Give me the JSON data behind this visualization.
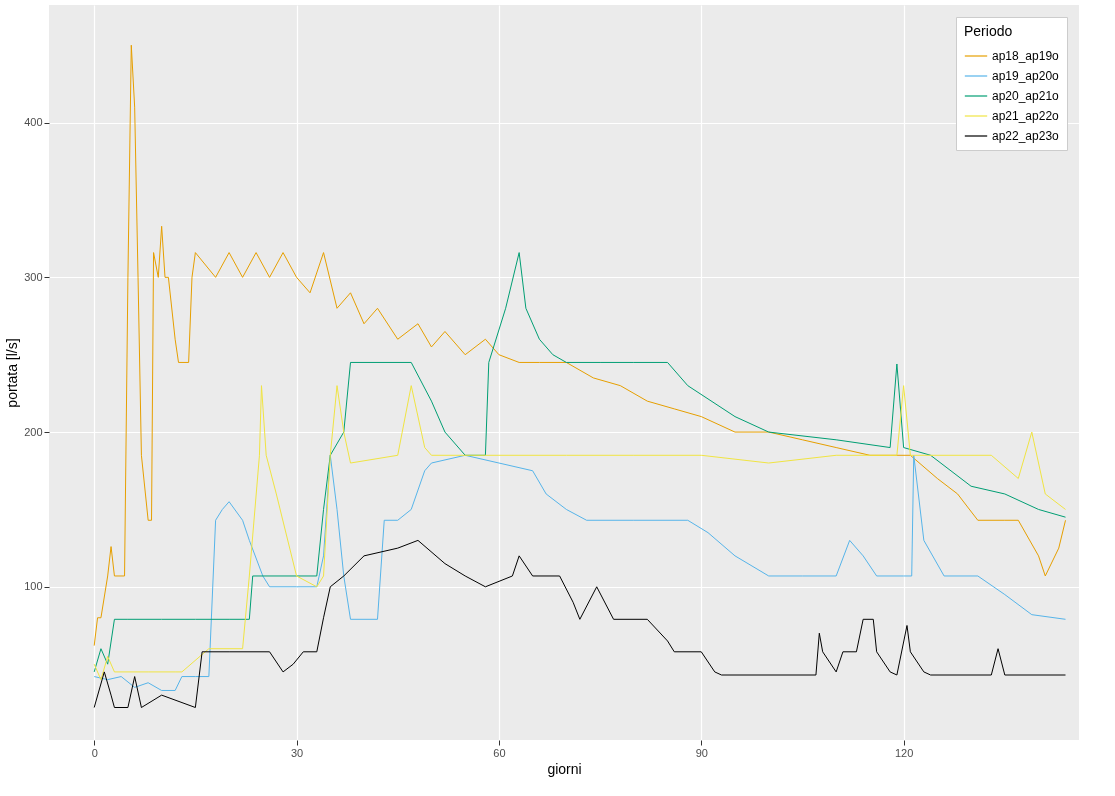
{
  "chart_data": {
    "type": "line",
    "xlabel": "giorni",
    "ylabel": "portata [l/s]",
    "legend_title": "Periodo",
    "legend": "top right",
    "grid": true,
    "line_style": "solid",
    "marker": "none",
    "xlim": [
      -6.7,
      146
    ],
    "ylim": [
      1,
      476
    ],
    "xticks": [
      0,
      30,
      60,
      90,
      120
    ],
    "yticks": [
      100,
      200,
      300,
      400
    ],
    "series": [
      {
        "name": "ap18_ap19o",
        "color": "#e69f00",
        "x": [
          0,
          0.5,
          1,
          2,
          2.5,
          3,
          4.5,
          5,
          5.5,
          6,
          6.5,
          7,
          8,
          8.5,
          8.8,
          9.5,
          10,
          10.5,
          11,
          12,
          12.5,
          14,
          14.5,
          15,
          18,
          20,
          22,
          24,
          26,
          28,
          30,
          32,
          34,
          36,
          38,
          40,
          42,
          45,
          48,
          50,
          52,
          55,
          58,
          60,
          63,
          66,
          70,
          74,
          78,
          82,
          86,
          90,
          95,
          100,
          105,
          110,
          115,
          118,
          121,
          125,
          128,
          131,
          135,
          137,
          140,
          141,
          143,
          144
        ],
        "values": [
          62,
          80,
          80,
          107,
          126,
          107,
          107,
          300,
          450,
          410,
          300,
          185,
          143,
          143,
          316,
          300,
          333,
          300,
          300,
          260,
          245,
          245,
          300,
          316,
          300,
          316,
          300,
          316,
          300,
          316,
          300,
          290,
          316,
          280,
          290,
          270,
          280,
          260,
          270,
          255,
          265,
          250,
          260,
          250,
          245,
          245,
          245,
          235,
          230,
          220,
          215,
          210,
          200,
          200,
          195,
          190,
          185,
          185,
          185,
          170,
          160,
          143,
          143,
          143,
          120,
          107,
          125,
          143
        ]
      },
      {
        "name": "ap19_ap20o",
        "color": "#56b4e9",
        "x": [
          0,
          2,
          4,
          6,
          8,
          10,
          12,
          13,
          15,
          17,
          18,
          19,
          20,
          22,
          23,
          25,
          26,
          30,
          33,
          34,
          35,
          36,
          37,
          38,
          42,
          43,
          45,
          47,
          49,
          50,
          55,
          60,
          65,
          67,
          70,
          73,
          80,
          88,
          91,
          95,
          100,
          105,
          110,
          112,
          114,
          116,
          120,
          121.2,
          121.5,
          123,
          126,
          131,
          135,
          139,
          144
        ],
        "values": [
          42,
          40,
          42,
          35,
          38,
          33,
          33,
          42,
          42,
          42,
          143,
          150,
          155,
          143,
          130,
          107,
          100,
          100,
          100,
          120,
          185,
          150,
          107,
          79,
          79,
          143,
          143,
          150,
          175,
          180,
          185,
          180,
          175,
          160,
          150,
          143,
          143,
          143,
          135,
          120,
          107,
          107,
          107,
          130,
          120,
          107,
          107,
          107,
          185,
          130,
          107,
          107,
          95,
          82,
          79
        ]
      },
      {
        "name": "ap20_ap21o",
        "color": "#009e73",
        "x": [
          0,
          1,
          2,
          3,
          5,
          10,
          15,
          20,
          23,
          23.5,
          30,
          33,
          34,
          35,
          37,
          38,
          47,
          50,
          52,
          55,
          58,
          58.5,
          61,
          63,
          64,
          66,
          68,
          70,
          75,
          80,
          85,
          88,
          95,
          100,
          110,
          118,
          119,
          120,
          124,
          130,
          135,
          140,
          144
        ],
        "values": [
          45,
          60,
          50,
          79,
          79,
          79,
          79,
          79,
          79,
          107,
          107,
          107,
          150,
          185,
          200,
          245,
          245,
          220,
          200,
          185,
          185,
          245,
          280,
          316,
          280,
          260,
          250,
          245,
          245,
          245,
          245,
          230,
          210,
          200,
          195,
          190,
          244,
          190,
          185,
          165,
          160,
          150,
          145
        ]
      },
      {
        "name": "ap21_ap22o",
        "color": "#f0e442",
        "x": [
          0,
          1,
          2,
          3,
          8,
          12,
          13,
          17,
          22,
          23,
          24.5,
          24.8,
          25.5,
          27,
          30,
          33,
          34,
          35,
          36,
          37,
          38,
          45,
          47,
          49,
          50,
          60,
          70,
          80,
          90,
          100,
          110,
          119,
          120,
          121,
          133,
          137,
          139,
          141,
          144
        ],
        "values": [
          50,
          40,
          55,
          45,
          45,
          45,
          45,
          60,
          60,
          107,
          185,
          230,
          185,
          160,
          107,
          100,
          107,
          185,
          230,
          200,
          180,
          185,
          230,
          190,
          185,
          185,
          185,
          185,
          185,
          180,
          185,
          185,
          230,
          185,
          185,
          170,
          200,
          160,
          150
        ]
      },
      {
        "name": "ap22_ap23o",
        "color": "#000000",
        "x": [
          0,
          1.5,
          2.5,
          3,
          5,
          6,
          7,
          10,
          15,
          16,
          20,
          26,
          28,
          29.5,
          31,
          33,
          34,
          35,
          37,
          40,
          45,
          48,
          52,
          55,
          58,
          62,
          63,
          65,
          69,
          71,
          72,
          74.5,
          77,
          82,
          85,
          86,
          90,
          92,
          93,
          107,
          107.5,
          108,
          110,
          111,
          113,
          114,
          115.5,
          116,
          118,
          119,
          120.5,
          121,
          123,
          124,
          133,
          134,
          135,
          144
        ],
        "values": [
          22,
          45,
          30,
          22,
          22,
          42,
          22,
          30,
          22,
          58,
          58,
          58,
          45,
          50,
          58,
          58,
          80,
          100,
          107,
          120,
          125,
          130,
          115,
          107,
          100,
          107,
          120,
          107,
          107,
          90,
          79,
          100,
          79,
          79,
          65,
          58,
          58,
          45,
          43,
          43,
          70,
          58,
          45,
          58,
          58,
          79,
          79,
          58,
          45,
          43,
          75,
          58,
          45,
          43,
          43,
          60,
          43,
          43
        ]
      }
    ]
  }
}
